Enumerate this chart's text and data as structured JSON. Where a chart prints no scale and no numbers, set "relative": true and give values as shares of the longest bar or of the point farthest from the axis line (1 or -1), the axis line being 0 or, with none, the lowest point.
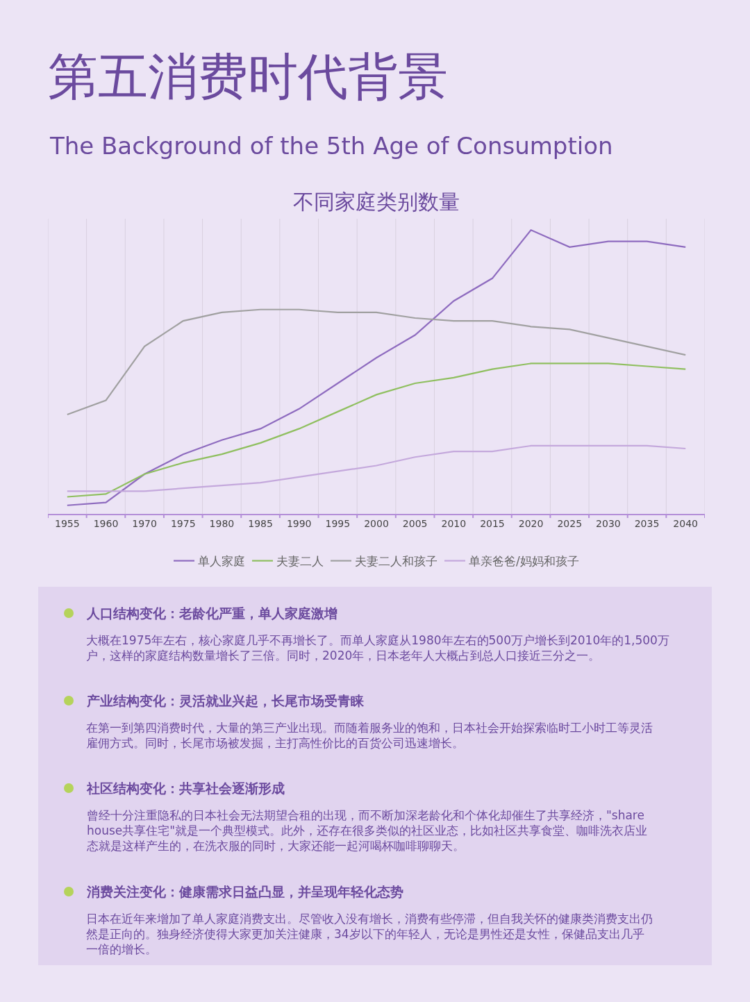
{
  "chart_data": {
    "type": "line",
    "title": "第五消费时代背景",
    "subtitle": "The Background of the 5th Age of Consumption",
    "relative": true,
    "grid": "x",
    "legend": "bottom",
    "marker": "none",
    "line_style": "solid",
    "categories": [
      "1955",
      "1960",
      "1970",
      "1975",
      "1980",
      "1985",
      "1990",
      "1995",
      "2000",
      "2005",
      "2010",
      "2015",
      "2020",
      "2025",
      "2030",
      "2035",
      "2040"
    ],
    "series": [
      {
        "name": "单人家庭",
        "color": "#8e6bbf",
        "values": [
          0.03,
          0.04,
          0.14,
          0.21,
          0.26,
          0.3,
          0.37,
          0.46,
          0.55,
          0.63,
          0.75,
          0.83,
          1.0,
          0.94,
          0.96,
          0.96,
          0.94
        ]
      },
      {
        "name": "夫妻二人",
        "color": "#8fbf5f",
        "values": [
          0.06,
          0.07,
          0.14,
          0.18,
          0.21,
          0.25,
          0.3,
          0.36,
          0.42,
          0.46,
          0.48,
          0.51,
          0.53,
          0.53,
          0.53,
          0.52,
          0.51
        ]
      },
      {
        "name": "夫妻二人和孩子",
        "color": "#a0a0a0",
        "values": [
          0.35,
          0.4,
          0.59,
          0.68,
          0.71,
          0.72,
          0.72,
          0.71,
          0.71,
          0.69,
          0.68,
          0.68,
          0.66,
          0.65,
          0.62,
          0.59,
          0.56
        ]
      },
      {
        "name": "单亲爸爸/妈妈和孩子",
        "color": "#c4a8dc",
        "values": [
          0.08,
          0.08,
          0.08,
          0.09,
          0.1,
          0.11,
          0.13,
          0.15,
          0.17,
          0.2,
          0.22,
          0.22,
          0.24,
          0.24,
          0.24,
          0.24,
          0.23
        ]
      }
    ],
    "annotations": [
      "不同家庭类别数量",
      "人口结构变化：老龄化严重，单人家庭激增",
      "大概在1975年左右，核心家庭几乎不再增长了。而单人家庭从1980年左右的500万户增长到2010年的1,500万户，这样的家庭结构数量增长了三倍。同时，2020年，日本老年人大概占到总人口接近三分之一。",
      "产业结构变化：灵活就业兴起，长尾市场受青睐",
      "在第一到第四消费时代，大量的第三产业出现。而随着服务业的饱和，日本社会开始探索临时工小时工等灵活雇佣方式。同时，长尾市场被发掘，主打高性价比的百货公司迅速增长。",
      "社区结构变化：共享社会逐渐形成",
      "曾经十分注重隐私的日本社会无法期望合租的出现，而不断加深老龄化和个体化却催生了共享经济，\"share house共享住宅\"就是一个典型模式。此外，还存在很多类似的社区业态，比如社区共享食堂、咖啡洗衣店业态就是这样产生的，在洗衣服的同时，大家还能一起河喝杯咖啡聊聊天。",
      "消费关注变化：健康需求日益凸显，并呈现年轻化态势",
      "日本在近年来增加了单人家庭消费支出。尽管收入没有增长，消费有些停滞，但自我关怀的健康类消费支出仍然是正向的。独身经济使得大家更加关注健康，34岁以下的年轻人，无论是男性还是女性，保健品支出几乎一倍的增长。"
    ]
  }
}
